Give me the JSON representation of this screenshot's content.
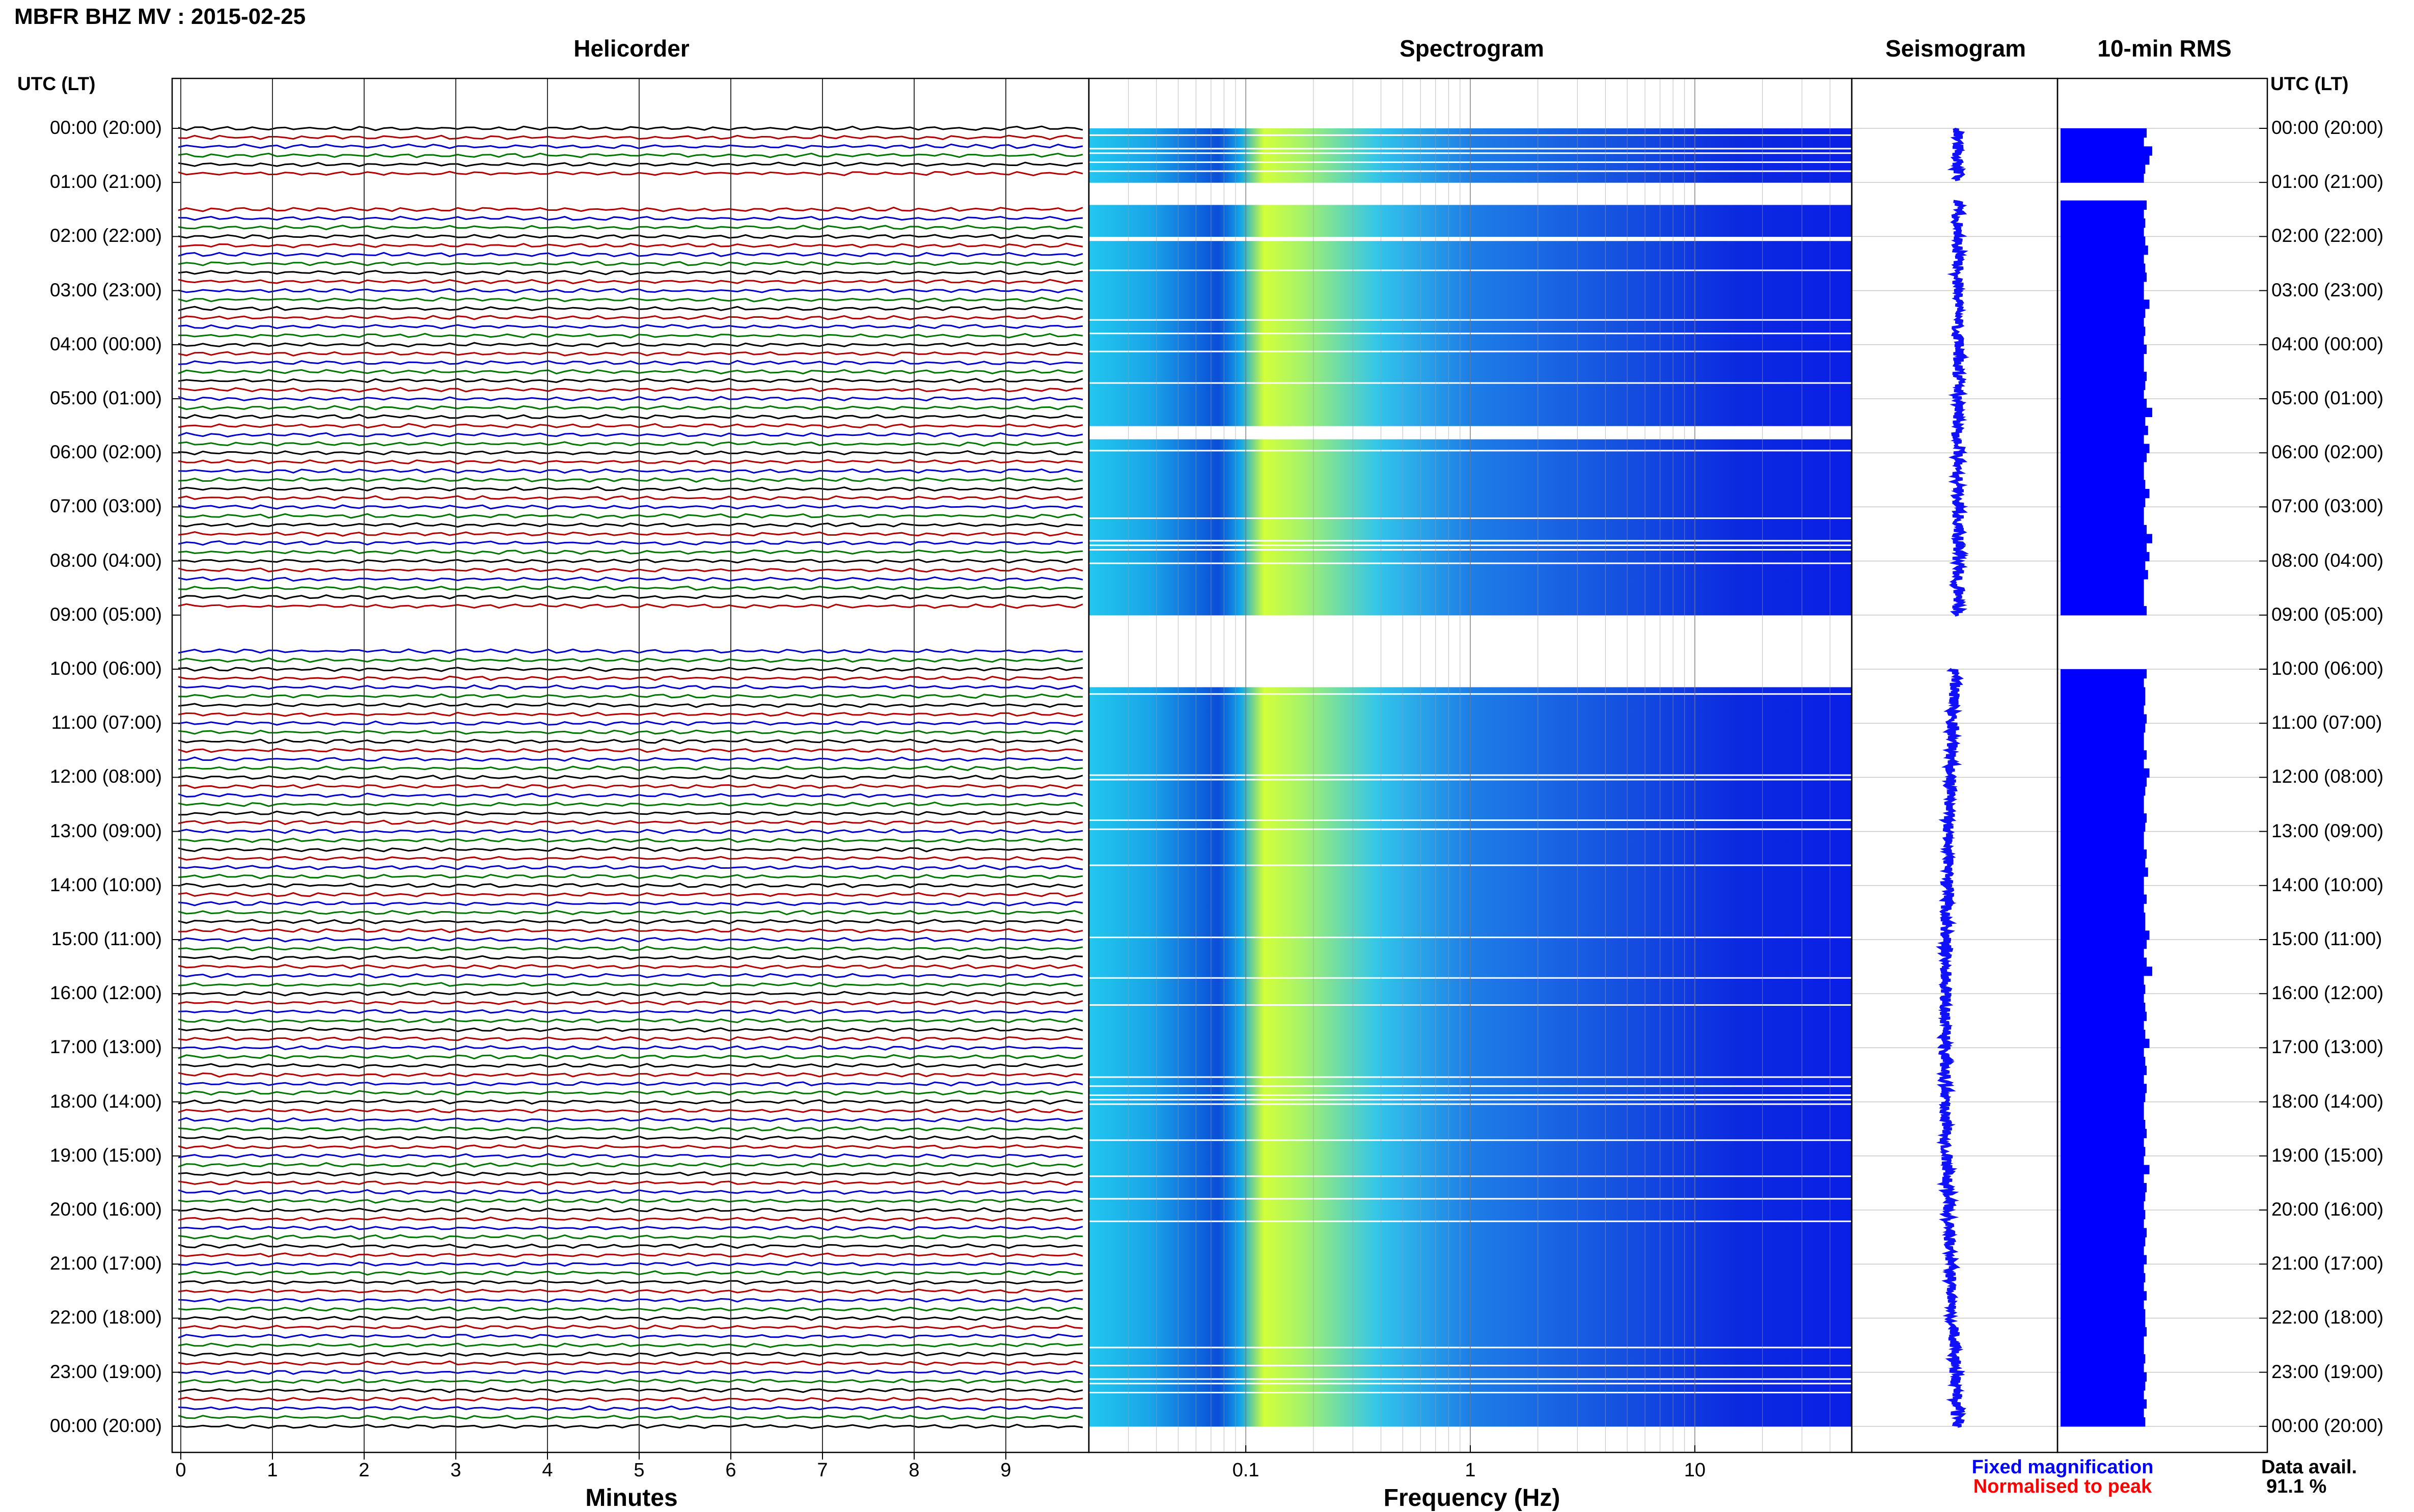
{
  "header": {
    "title": "MBFR BHZ MV : 2015-02-25"
  },
  "panels": {
    "helicorder": "Helicorder",
    "spectrogram": "Spectrogram",
    "seismogram": "Seismogram",
    "rms": "10-min RMS"
  },
  "time_axis": {
    "header_left": "UTC (LT)",
    "header_right": "UTC (LT)",
    "labels": [
      "00:00 (20:00)",
      "01:00 (21:00)",
      "02:00 (22:00)",
      "03:00 (23:00)",
      "04:00 (00:00)",
      "05:00 (01:00)",
      "06:00 (02:00)",
      "07:00 (03:00)",
      "08:00 (04:00)",
      "09:00 (05:00)",
      "10:00 (06:00)",
      "11:00 (07:00)",
      "12:00 (08:00)",
      "13:00 (09:00)",
      "14:00 (10:00)",
      "15:00 (11:00)",
      "16:00 (12:00)",
      "17:00 (13:00)",
      "18:00 (14:00)",
      "19:00 (15:00)",
      "20:00 (16:00)",
      "21:00 (17:00)",
      "22:00 (18:00)",
      "23:00 (19:00)",
      "00:00 (20:00)"
    ]
  },
  "x_axes": {
    "minutes_label": "Minutes",
    "minutes_ticks": [
      "0",
      "1",
      "2",
      "3",
      "4",
      "5",
      "6",
      "7",
      "8",
      "9"
    ],
    "frequency_label": "Frequency (Hz)",
    "frequency_ticks": [
      "0.1",
      "1",
      "10"
    ]
  },
  "legend": {
    "fixed": "Fixed magnification",
    "normalised": "Normalised to peak",
    "fixed_color": "#0000ff",
    "normalised_color": "#ff0000"
  },
  "availability": {
    "label": "Data avail.",
    "value": "91.1 %"
  },
  "colors": {
    "trace_cycle": [
      "#000000",
      "#b30000",
      "#0000cc",
      "#007700"
    ],
    "seismogram": "#1010ff",
    "rms": "#0000ff"
  },
  "chart_data": {
    "type": "heatmap",
    "helicorder": {
      "x_range_minutes": [
        0,
        10
      ],
      "lines_per_hour": 6,
      "hours": 24,
      "gaps_utc_hours": [
        [
          0.95,
          1.35
        ],
        [
          9.0,
          9.65
        ]
      ]
    },
    "spectrogram": {
      "freq_range_hz": [
        0.02,
        50
      ],
      "log_x": true,
      "colormap": "jet",
      "gaps_utc_hours": [
        [
          0.95,
          1.35
        ],
        [
          1.97,
          2.03
        ],
        [
          5.45,
          5.72
        ],
        [
          8.95,
          10.3
        ]
      ]
    },
    "seismogram": {
      "gaps_utc_hours": [
        [
          0.95,
          1.35
        ],
        [
          9.0,
          10.0
        ]
      ]
    },
    "rms_10min": {
      "relative_values": [
        0.62,
        0.6,
        0.66,
        0.64,
        0.61,
        0.6,
        0.0,
        0.0,
        0.62,
        0.6,
        0.61,
        0.6,
        0.61,
        0.63,
        0.6,
        0.61,
        0.62,
        0.6,
        0.6,
        0.64,
        0.61,
        0.6,
        0.61,
        0.6,
        0.62,
        0.6,
        0.6,
        0.62,
        0.61,
        0.6,
        0.62,
        0.66,
        0.61,
        0.63,
        0.6,
        0.64,
        0.62,
        0.6,
        0.6,
        0.61,
        0.64,
        0.61,
        0.6,
        0.6,
        0.62,
        0.66,
        0.62,
        0.64,
        0.61,
        0.63,
        0.6,
        0.6,
        0.6,
        0.62,
        0.0,
        0.0,
        0.0,
        0.0,
        0.0,
        0.0,
        0.62,
        0.6,
        0.61,
        0.61,
        0.6,
        0.62,
        0.61,
        0.6,
        0.6,
        0.62,
        0.6,
        0.64,
        0.62,
        0.61,
        0.6,
        0.6,
        0.62,
        0.61,
        0.6,
        0.6,
        0.62,
        0.61,
        0.63,
        0.6,
        0.6,
        0.62,
        0.6,
        0.61,
        0.61,
        0.64,
        0.62,
        0.6,
        0.62,
        0.66,
        0.6,
        0.61,
        0.6,
        0.61,
        0.62,
        0.6,
        0.61,
        0.64,
        0.6,
        0.61,
        0.62,
        0.6,
        0.62,
        0.61,
        0.6,
        0.6,
        0.61,
        0.62,
        0.6,
        0.61,
        0.6,
        0.64,
        0.6,
        0.62,
        0.61,
        0.6,
        0.61,
        0.6,
        0.62,
        0.61,
        0.6,
        0.62,
        0.6,
        0.61,
        0.6,
        0.62,
        0.6,
        0.61,
        0.61,
        0.62,
        0.6,
        0.6,
        0.61,
        0.6,
        0.62,
        0.61,
        0.6,
        0.62,
        0.6,
        0.61
      ]
    }
  }
}
